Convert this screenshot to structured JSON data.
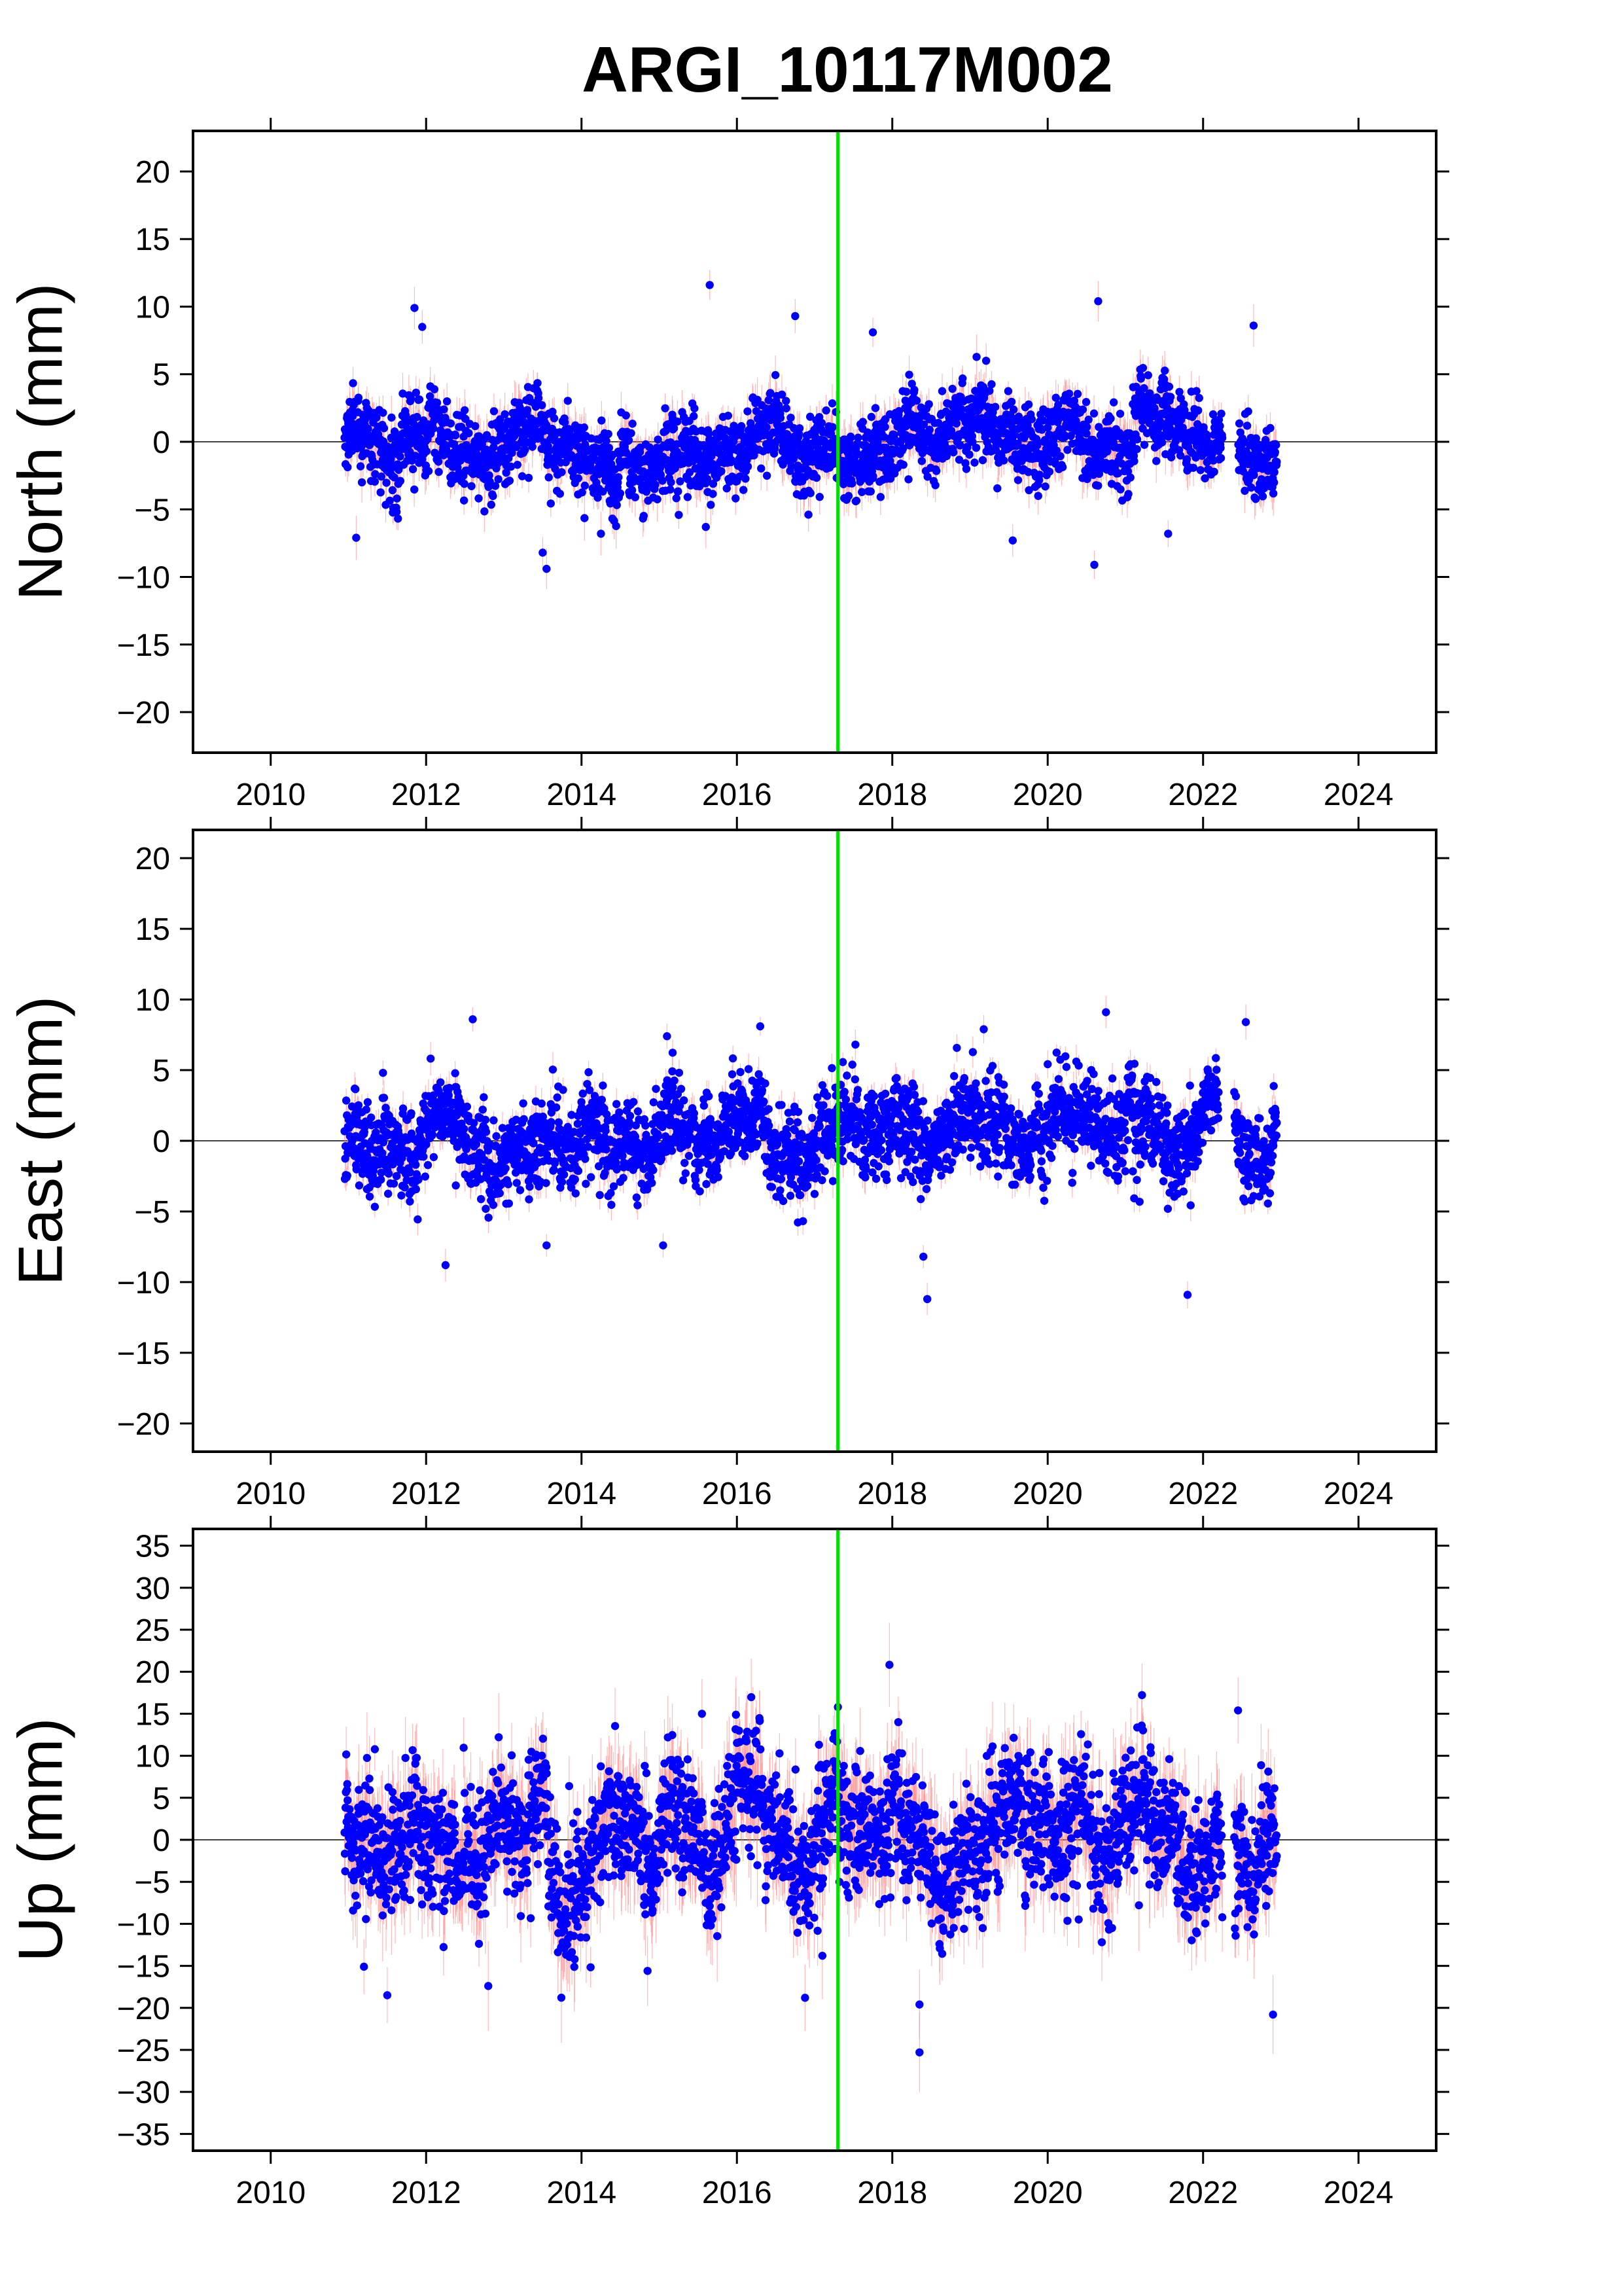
{
  "title": "ARGI_10117M002",
  "colors": {
    "points": "#0000ff",
    "error_bars": "#ff8080",
    "event_line": "#00e000",
    "zero_line": "#000000",
    "frame": "#000000"
  },
  "chart_data": [
    {
      "type": "scatter",
      "ylabel": "North (mm)",
      "xlim": [
        2009,
        2025
      ],
      "ylim": [
        -23,
        23
      ],
      "xticks": [
        "2010",
        "2012",
        "2014",
        "2016",
        "2018",
        "2020",
        "2022",
        "2024"
      ],
      "yticks": [
        "20",
        "15",
        "10",
        "5",
        "0",
        "−5",
        "−10",
        "−15",
        "−20"
      ],
      "event_line_x": 2017.3,
      "data_range_x": [
        2010.95,
        2022.95
      ],
      "gaps": [
        [
          2022.25,
          2022.45
        ]
      ],
      "scatter_sigma": 1.6,
      "error_bar_size": 1.2,
      "outliers": [
        {
          "x": 2011.1,
          "y": -7.1
        },
        {
          "x": 2011.85,
          "y": 9.9
        },
        {
          "x": 2011.95,
          "y": 8.5
        },
        {
          "x": 2013.55,
          "y": -9.4
        },
        {
          "x": 2013.5,
          "y": -8.2
        },
        {
          "x": 2015.65,
          "y": 11.6
        },
        {
          "x": 2016.75,
          "y": 9.3
        },
        {
          "x": 2017.75,
          "y": 8.1
        },
        {
          "x": 2019.55,
          "y": -7.3
        },
        {
          "x": 2020.65,
          "y": 10.4
        },
        {
          "x": 2020.6,
          "y": -9.1
        },
        {
          "x": 2021.55,
          "y": -6.8
        },
        {
          "x": 2022.65,
          "y": 8.6
        },
        {
          "x": 2014.25,
          "y": -6.8
        },
        {
          "x": 2015.6,
          "y": -6.3
        }
      ]
    },
    {
      "type": "scatter",
      "ylabel": "East (mm)",
      "xlim": [
        2009,
        2025
      ],
      "ylim": [
        -22,
        22
      ],
      "xticks": [
        "2010",
        "2012",
        "2014",
        "2016",
        "2018",
        "2020",
        "2022",
        "2024"
      ],
      "yticks": [
        "20",
        "15",
        "10",
        "5",
        "0",
        "−5",
        "−10",
        "−15",
        "−20"
      ],
      "event_line_x": 2017.3,
      "data_range_x": [
        2010.95,
        2022.95
      ],
      "gaps": [
        [
          2022.2,
          2022.4
        ]
      ],
      "scatter_sigma": 1.8,
      "error_bar_size": 0.9,
      "outliers": [
        {
          "x": 2012.25,
          "y": -8.8
        },
        {
          "x": 2012.6,
          "y": 8.6
        },
        {
          "x": 2013.55,
          "y": -7.4
        },
        {
          "x": 2015.05,
          "y": -7.4
        },
        {
          "x": 2016.3,
          "y": 8.1
        },
        {
          "x": 2018.45,
          "y": -11.2
        },
        {
          "x": 2018.4,
          "y": -8.2
        },
        {
          "x": 2020.75,
          "y": 9.1
        },
        {
          "x": 2021.8,
          "y": -10.9
        },
        {
          "x": 2022.55,
          "y": 8.4
        },
        {
          "x": 2015.1,
          "y": 7.4
        }
      ]
    },
    {
      "type": "scatter",
      "ylabel": "Up (mm)",
      "xlim": [
        2009,
        2025
      ],
      "ylim": [
        -37,
        37
      ],
      "xticks": [
        "2010",
        "2012",
        "2014",
        "2016",
        "2018",
        "2020",
        "2022",
        "2024"
      ],
      "yticks": [
        "35",
        "30",
        "25",
        "20",
        "15",
        "10",
        "5",
        "0",
        "−5",
        "−10",
        "−15",
        "−20",
        "−25",
        "−30",
        "−35"
      ],
      "event_line_x": 2017.3,
      "data_range_x": [
        2010.95,
        2022.95
      ],
      "gaps": [
        [
          2022.25,
          2022.4
        ]
      ],
      "scatter_sigma": 4.5,
      "error_bar_size": 4.0,
      "outliers": [
        {
          "x": 2011.5,
          "y": -18.5
        },
        {
          "x": 2012.8,
          "y": -17.4
        },
        {
          "x": 2015.55,
          "y": 15.0
        },
        {
          "x": 2017.3,
          "y": 15.8
        },
        {
          "x": 2018.35,
          "y": -25.3
        },
        {
          "x": 2018.35,
          "y": -19.6
        },
        {
          "x": 2022.45,
          "y": 15.4
        },
        {
          "x": 2022.9,
          "y": -20.8
        },
        {
          "x": 2014.85,
          "y": -15.6
        },
        {
          "x": 2017.1,
          "y": -13.8
        },
        {
          "x": 2011.2,
          "y": -15.1
        }
      ]
    }
  ]
}
